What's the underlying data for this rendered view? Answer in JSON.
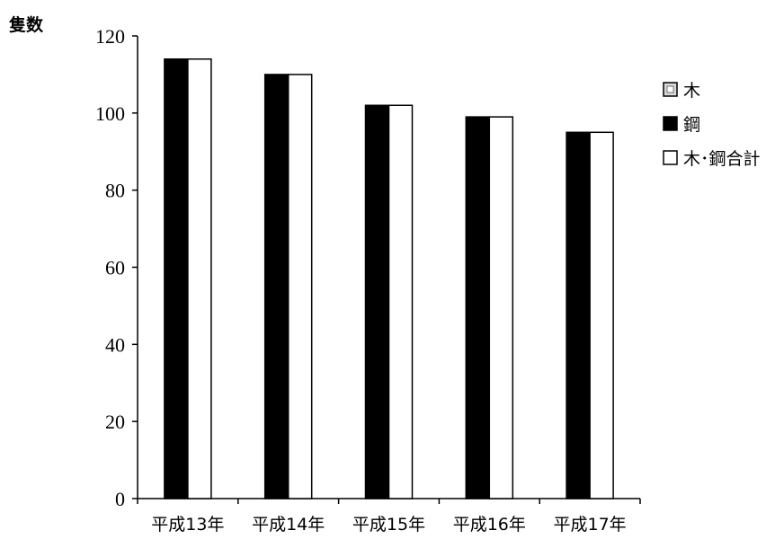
{
  "chart_data": {
    "type": "bar",
    "title": "",
    "xlabel": "",
    "ylabel": "隻数",
    "ylim": [
      0,
      120
    ],
    "yticks": [
      0,
      20,
      40,
      60,
      80,
      100,
      120
    ],
    "categories": [
      "平成13年",
      "平成14年",
      "平成15年",
      "平成16年",
      "平成17年"
    ],
    "series": [
      {
        "name": "木",
        "values": [
          0,
          0,
          0,
          0,
          0
        ],
        "color": "#d8d8d8"
      },
      {
        "name": "鋼",
        "values": [
          114,
          110,
          102,
          99,
          95
        ],
        "color": "#000000"
      },
      {
        "name": "木･鋼合計",
        "values": [
          114,
          110,
          102,
          99,
          95
        ],
        "color": "#ffffff"
      }
    ],
    "legend_position": "right",
    "grid": false
  }
}
